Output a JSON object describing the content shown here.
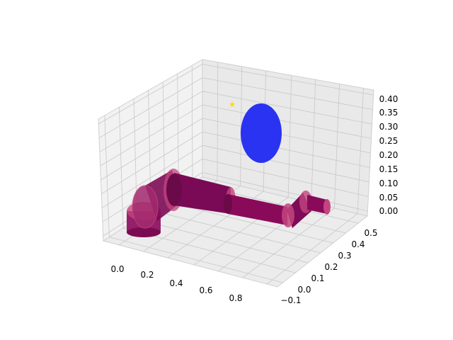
{
  "chart_data": {
    "type": "3d-scene",
    "title": "",
    "xlabel": "",
    "ylabel": "",
    "zlabel": "",
    "grid": true,
    "x_ticks": [
      "0.0",
      "0.2",
      "0.4",
      "0.6",
      "0.8"
    ],
    "y_ticks": [
      "−0.1",
      "0.0",
      "0.1",
      "0.2",
      "0.3",
      "0.4",
      "0.5"
    ],
    "z_ticks": [
      "0.00",
      "0.05",
      "0.10",
      "0.15",
      "0.20",
      "0.25",
      "0.30",
      "0.35",
      "0.40"
    ],
    "colors": {
      "arm": "#8a0a5a",
      "arm_dark": "#5c0b45",
      "joint_ring": "#c2457e",
      "target_sphere": "#2a33f2",
      "goal_marker": "#ffd700",
      "pane": "#f2f2f2",
      "grid": "#c8c8c8"
    },
    "objects": [
      {
        "name": "base-cylinder",
        "kind": "cylinder"
      },
      {
        "name": "shoulder-joint",
        "kind": "cylinder"
      },
      {
        "name": "upper-arm",
        "kind": "cylinder"
      },
      {
        "name": "forearm",
        "kind": "cylinder"
      },
      {
        "name": "wrist-joint",
        "kind": "cylinder"
      },
      {
        "name": "end-effector",
        "kind": "cylinder"
      },
      {
        "name": "obstacle-sphere",
        "kind": "ellipsoid"
      },
      {
        "name": "goal-star",
        "kind": "marker",
        "icon": "star-icon"
      }
    ]
  }
}
